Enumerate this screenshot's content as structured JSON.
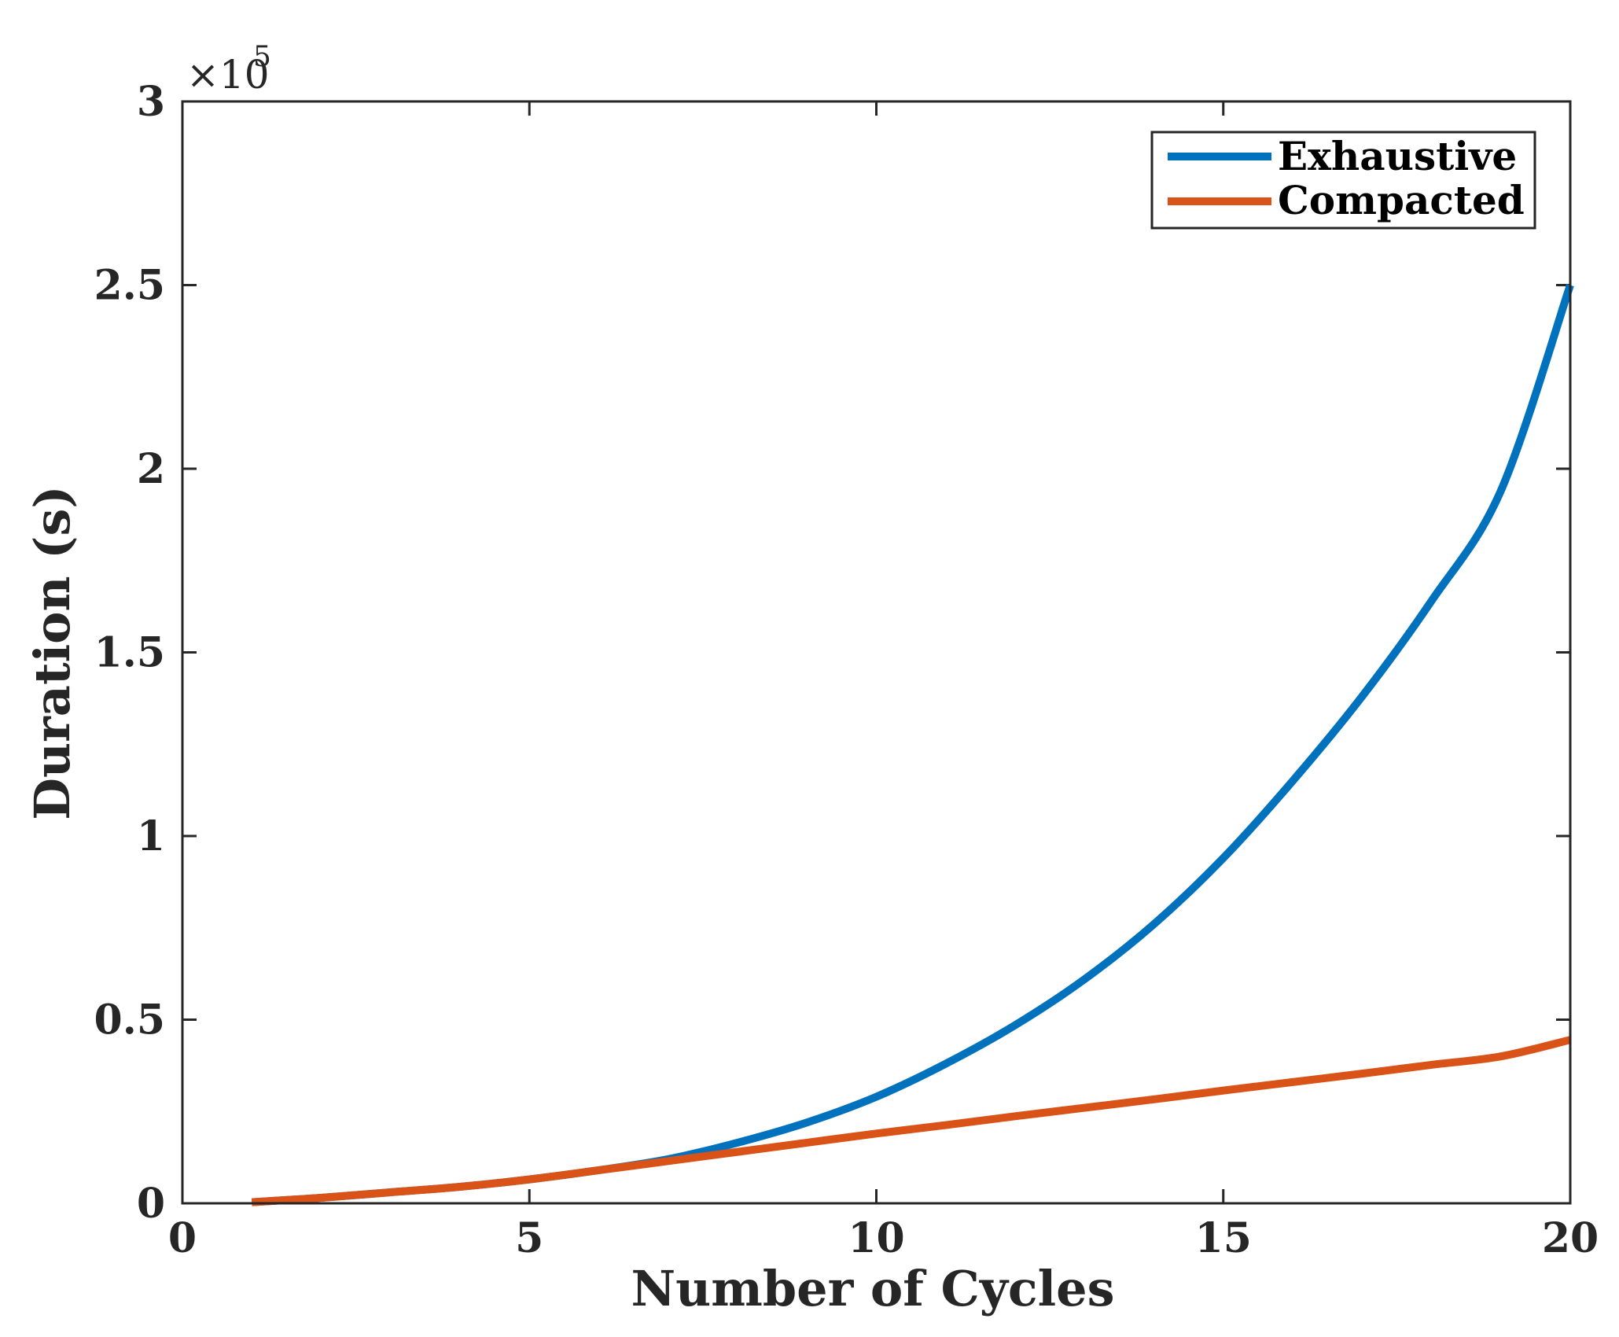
{
  "chart_data": {
    "type": "line",
    "title": "",
    "xlabel": "Number of Cycles",
    "ylabel": "Duration (s)",
    "xlim": [
      0,
      20
    ],
    "ylim": [
      0,
      300000
    ],
    "x_ticks": [
      0,
      5,
      10,
      15,
      20
    ],
    "x_tick_labels": [
      "0",
      "5",
      "10",
      "15",
      "20"
    ],
    "y_ticks": [
      0,
      50000,
      100000,
      150000,
      200000,
      250000,
      300000
    ],
    "y_tick_labels": [
      "0",
      "0.5",
      "1",
      "1.5",
      "2",
      "2.5",
      "3"
    ],
    "y_multiplier": {
      "base": "×10",
      "exponent": "5"
    },
    "grid": false,
    "legend_position": "top-right",
    "x": [
      1,
      2,
      3,
      4,
      5,
      6,
      7,
      8,
      9,
      10,
      11,
      12,
      13,
      14,
      15,
      16,
      17,
      18,
      19,
      20
    ],
    "series": [
      {
        "name": "Exhaustive",
        "color": "#0072BD",
        "values": [
          300,
          1500,
          3000,
          4500,
          6500,
          9000,
          12000,
          16500,
          22000,
          29000,
          38000,
          48500,
          61000,
          76000,
          94000,
          115000,
          138000,
          164000,
          194000,
          250000
        ]
      },
      {
        "name": "Compacted",
        "color": "#D95319",
        "values": [
          300,
          1500,
          3000,
          4500,
          6500,
          9000,
          11500,
          14000,
          16500,
          19000,
          21300,
          23700,
          26000,
          28300,
          30700,
          33000,
          35300,
          37700,
          40000,
          44500
        ]
      }
    ]
  }
}
